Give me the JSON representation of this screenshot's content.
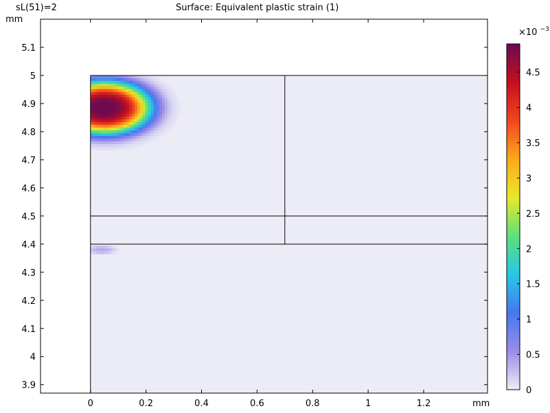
{
  "header": {
    "param_label": "sL(51)=2",
    "title": "Surface: Equivalent plastic strain (1)"
  },
  "chart_data": {
    "type": "heatmap",
    "title": "Surface: Equivalent plastic strain (1)",
    "subtitle": "sL(51)=2",
    "x_unit": "mm",
    "y_unit": "mm",
    "xlim": [
      -0.18,
      1.43
    ],
    "ylim": [
      3.87,
      5.2
    ],
    "x_ticks": [
      0,
      0.2,
      0.4,
      0.6,
      0.8,
      1,
      1.2
    ],
    "x_tick_labels": [
      "0",
      "0.2",
      "0.4",
      "0.6",
      "0.8",
      "1",
      "1.2"
    ],
    "y_ticks": [
      3.9,
      4,
      4.1,
      4.2,
      4.3,
      4.4,
      4.5,
      4.6,
      4.7,
      4.8,
      4.9,
      5,
      5.1
    ],
    "y_tick_labels": [
      "3.9",
      "4",
      "4.1",
      "4.2",
      "4.3",
      "4.4",
      "4.5",
      "4.6",
      "4.7",
      "4.8",
      "4.9",
      "5",
      "5.1"
    ],
    "domain": {
      "x": [
        0,
        1.43
      ],
      "y": [
        3.87,
        5.0
      ]
    },
    "geometry_lines": [
      {
        "x1": 0,
        "y1": 5.0,
        "x2": 1.43,
        "y2": 5.0
      },
      {
        "x1": 0,
        "y1": 3.87,
        "x2": 0,
        "y2": 5.0
      },
      {
        "x1": 0.7,
        "y1": 4.4,
        "x2": 0.7,
        "y2": 5.0
      },
      {
        "x1": 0,
        "y1": 4.5,
        "x2": 1.43,
        "y2": 4.5
      },
      {
        "x1": 0,
        "y1": 4.4,
        "x2": 1.43,
        "y2": 4.4
      }
    ],
    "hotspots": [
      {
        "cx": 0.05,
        "cy": 4.885,
        "sx": 0.17,
        "sy": 0.095,
        "peak": 4.9
      },
      {
        "cx": 0.04,
        "cy": 4.38,
        "sx": 0.05,
        "sy": 0.015,
        "peak": 0.35
      }
    ],
    "colorbar": {
      "min": 0,
      "max": 4.9,
      "ticks": [
        0,
        0.5,
        1,
        1.5,
        2,
        2.5,
        3,
        3.5,
        4,
        4.5
      ],
      "tick_labels": [
        "0",
        "0.5",
        "1",
        "1.5",
        "2",
        "2.5",
        "3",
        "3.5",
        "4",
        "4.5"
      ],
      "multiplier_base": "×10",
      "multiplier_exp": "−3",
      "colormap": [
        "#ececf6",
        "#9b8ce6",
        "#4677f0",
        "#27c8e6",
        "#5ee07a",
        "#e8e82a",
        "#fbaa1a",
        "#f2461e",
        "#c5101e",
        "#6b0a52"
      ]
    }
  }
}
